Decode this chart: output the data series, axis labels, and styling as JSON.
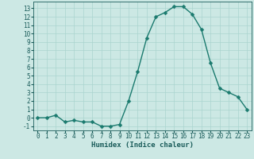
{
  "x": [
    0,
    1,
    2,
    3,
    4,
    5,
    6,
    7,
    8,
    9,
    10,
    11,
    12,
    13,
    14,
    15,
    16,
    17,
    18,
    19,
    20,
    21,
    22,
    23
  ],
  "y": [
    0,
    0,
    0.3,
    -0.5,
    -0.3,
    -0.5,
    -0.5,
    -1,
    -1,
    -0.8,
    2,
    5.5,
    9.5,
    12,
    12.5,
    13.2,
    13.2,
    12.3,
    10.5,
    6.5,
    3.5,
    3,
    2.5,
    1
  ],
  "line_color": "#1a7a6e",
  "marker_color": "#1a7a6e",
  "bg_color": "#cce8e4",
  "grid_color": "#aad4cf",
  "xlabel": "Humidex (Indice chaleur)",
  "ylim": [
    -1.5,
    13.8
  ],
  "xlim": [
    -0.5,
    23.5
  ],
  "yticks": [
    -1,
    0,
    1,
    2,
    3,
    4,
    5,
    6,
    7,
    8,
    9,
    10,
    11,
    12,
    13
  ],
  "xticks": [
    0,
    1,
    2,
    3,
    4,
    5,
    6,
    7,
    8,
    9,
    10,
    11,
    12,
    13,
    14,
    15,
    16,
    17,
    18,
    19,
    20,
    21,
    22,
    23
  ],
  "font_color": "#1a5c5a",
  "tick_fontsize": 5.5,
  "label_fontsize": 6.5,
  "line_width": 1.0,
  "marker_size": 2.5
}
